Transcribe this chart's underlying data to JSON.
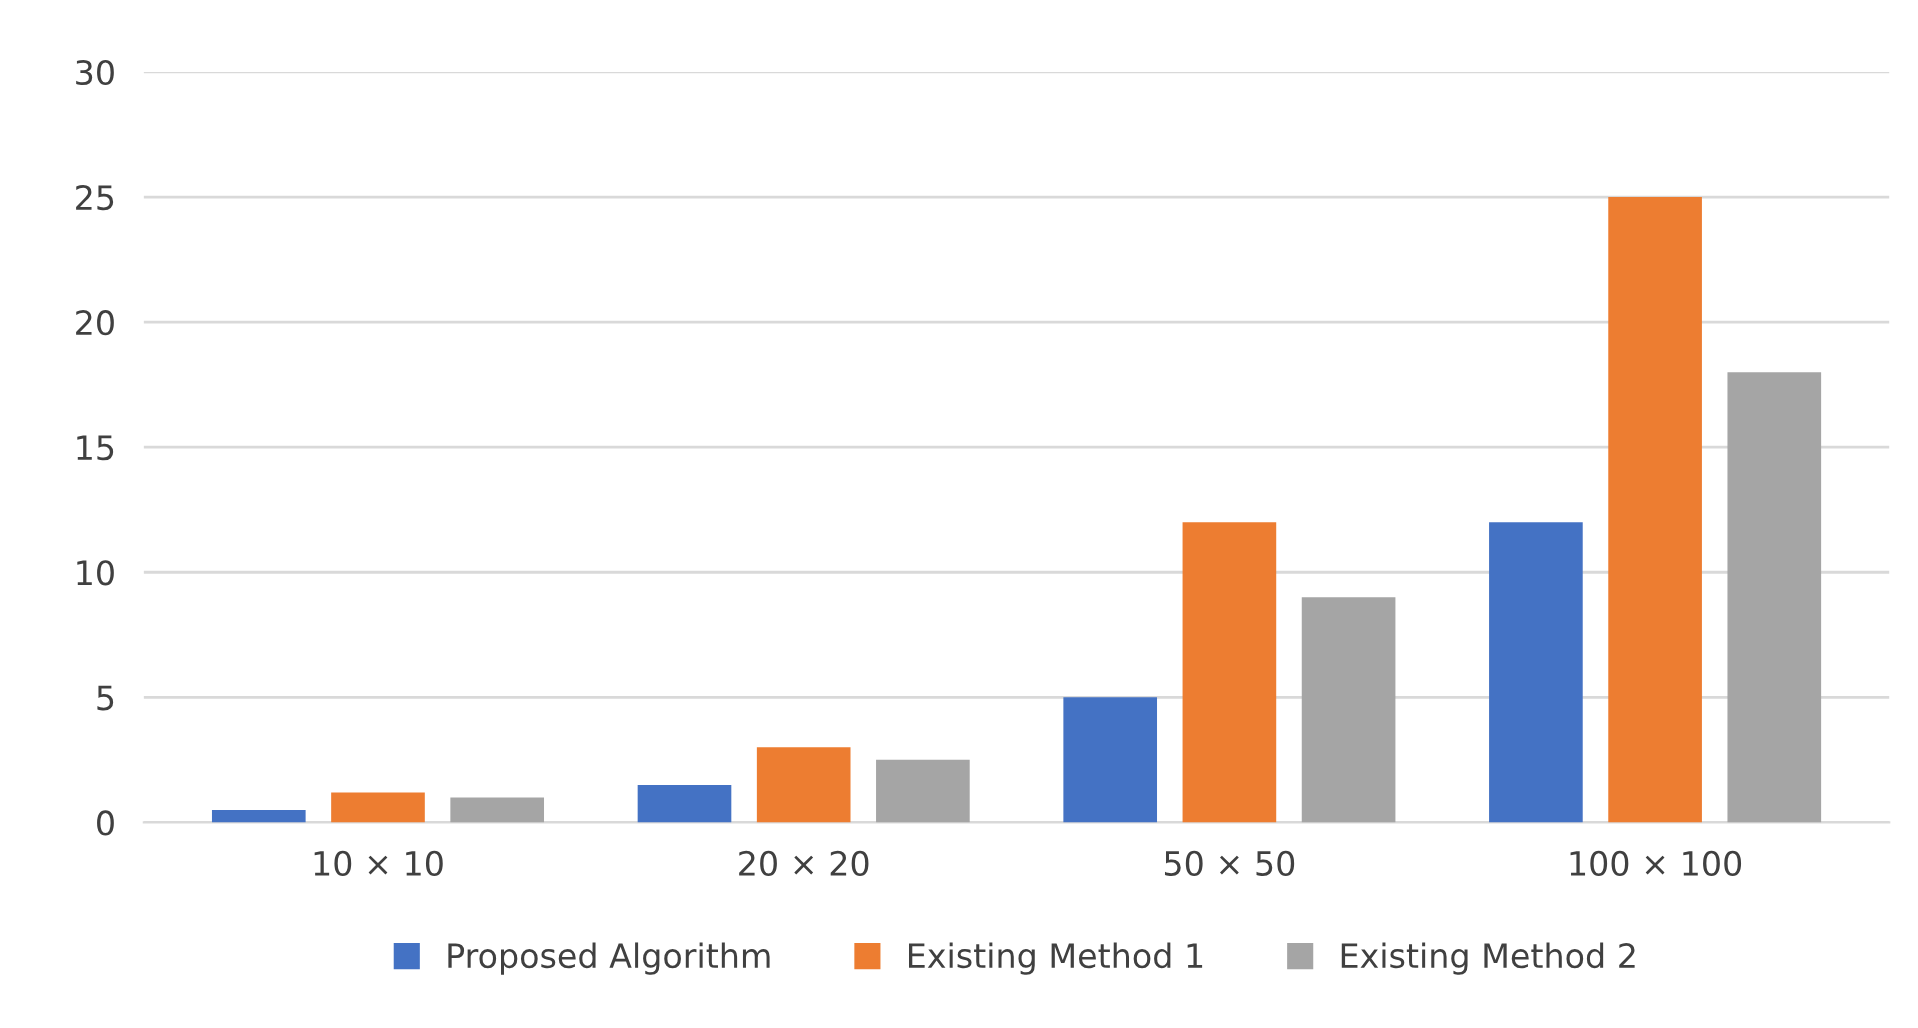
{
  "chart_data": {
    "type": "bar",
    "categories": [
      "10 × 10",
      "20 × 20",
      "50 × 50",
      "100 × 100"
    ],
    "series": [
      {
        "name": "Proposed Algorithm",
        "color": "#4472c4",
        "values": [
          0.5,
          1.5,
          5,
          12
        ]
      },
      {
        "name": "Existing Method 1",
        "color": "#ed7d31",
        "values": [
          1.2,
          3,
          12,
          25
        ]
      },
      {
        "name": "Existing Method 2",
        "color": "#a5a5a5",
        "values": [
          1.0,
          2.5,
          9,
          18
        ]
      }
    ],
    "ylim": [
      0,
      30
    ],
    "yticks": [
      0,
      5,
      10,
      15,
      20,
      25,
      30
    ],
    "grid": "y",
    "legend": "bottom"
  }
}
